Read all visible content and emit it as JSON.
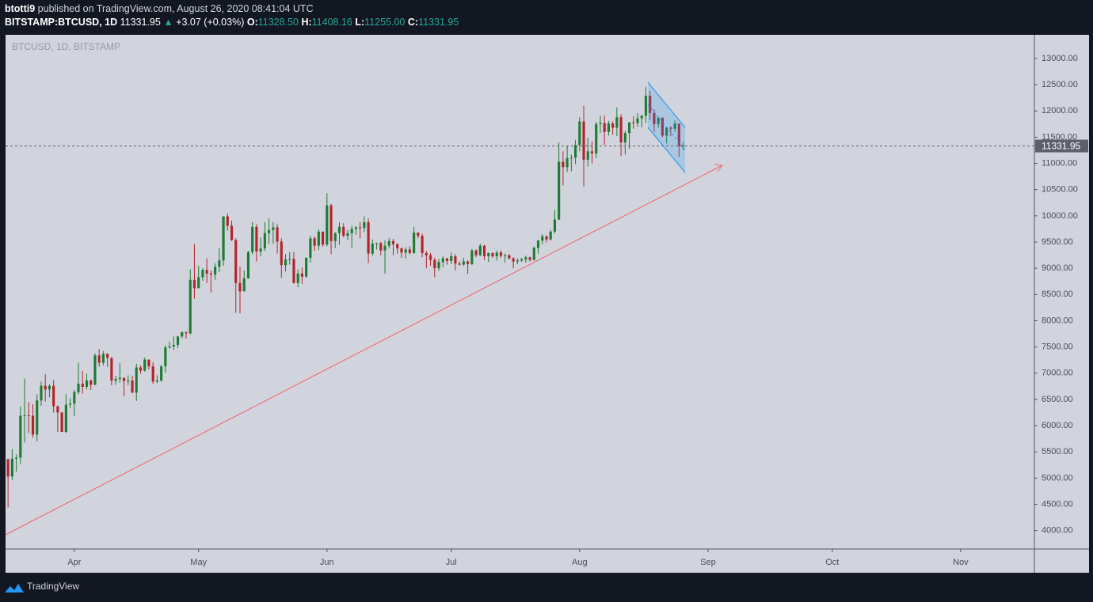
{
  "header": {
    "author": "btotti9",
    "published": "published on TradingView.com, August 26, 2020 08:41:04 UTC",
    "symbol": "BITSTAMP:BTCUSD, 1D",
    "last": "11331.95",
    "arrow": "▲",
    "change": "+3.07 (+0.03%)",
    "ohlc": [
      {
        "label": "O:",
        "value": "11328.50"
      },
      {
        "label": "H:",
        "value": "11408.16"
      },
      {
        "label": "L:",
        "value": "11255.00"
      },
      {
        "label": "C:",
        "value": "11331.95"
      }
    ]
  },
  "footer": {
    "brand": "TradingView"
  },
  "chart_data": {
    "type": "candlestick",
    "watermark": "BTCUSD, 1D, BITSTAMP",
    "up_color": "#1e7b34",
    "down_color": "#b2242b",
    "last_price": 11331.95,
    "xlim": [
      -0.6,
      247.8
    ],
    "xticks": [
      {
        "value": 16,
        "label": "Apr"
      },
      {
        "value": 46,
        "label": "May"
      },
      {
        "value": 77,
        "label": "Jun"
      },
      {
        "value": 107,
        "label": "Jul"
      },
      {
        "value": 138,
        "label": "Aug"
      },
      {
        "value": 169,
        "label": "Sep"
      },
      {
        "value": 199,
        "label": "Oct"
      },
      {
        "value": 230,
        "label": "Nov"
      }
    ],
    "ylim": [
      3648,
      13452
    ],
    "yticks": [
      {
        "value": 4000,
        "label": "4000.00"
      },
      {
        "value": 4500,
        "label": "4500.00"
      },
      {
        "value": 5000,
        "label": "5000.00"
      },
      {
        "value": 5500,
        "label": "5500.00"
      },
      {
        "value": 6000,
        "label": "6000.00"
      },
      {
        "value": 6500,
        "label": "6500.00"
      },
      {
        "value": 7000,
        "label": "7000.00"
      },
      {
        "value": 7500,
        "label": "7500.00"
      },
      {
        "value": 8000,
        "label": "8000.00"
      },
      {
        "value": 8500,
        "label": "8500.00"
      },
      {
        "value": 9000,
        "label": "9000.00"
      },
      {
        "value": 9500,
        "label": "9500.00"
      },
      {
        "value": 10000,
        "label": "10000.00"
      },
      {
        "value": 10500,
        "label": "10500.00"
      },
      {
        "value": 11000,
        "label": "11000.00"
      },
      {
        "value": 11500,
        "label": "11500.00"
      },
      {
        "value": 12000,
        "label": "12000.00"
      },
      {
        "value": 12500,
        "label": "12500.00"
      },
      {
        "value": 13000,
        "label": "13000.00"
      }
    ],
    "open": [
      5360,
      5030,
      5370,
      5390,
      6190,
      6200,
      6190,
      5830,
      6480,
      6760,
      6690,
      6760,
      6370,
      6250,
      5880,
      6400,
      6420,
      6640,
      6800,
      6740,
      6860,
      6780,
      7340,
      7200,
      7370,
      7290,
      6860,
      6890,
      6910,
      6850,
      6860,
      6630,
      7110,
      7050,
      7260,
      7130,
      6840,
      6860,
      7130,
      7490,
      7510,
      7540,
      7700,
      7780,
      7760,
      8780,
      8620,
      8830,
      8970,
      8900,
      8880,
      9030,
      9150,
      9990,
      9810,
      9540,
      8720,
      8560,
      8810,
      9310,
      9790,
      9320,
      9380,
      9670,
      9730,
      9780,
      9510,
      9060,
      9170,
      9180,
      8720,
      8900,
      8840,
      9200,
      9570,
      9430,
      9700,
      9450,
      10200,
      9520,
      9670,
      9790,
      9620,
      9670,
      9750,
      9780,
      9770,
      9880,
      9280,
      9470,
      9480,
      9340,
      9430,
      9520,
      9460,
      9380,
      9300,
      9360,
      9290,
      9680,
      9620,
      9290,
      9250,
      9160,
      9000,
      9120,
      9190,
      9140,
      9230,
      9090,
      9070,
      9130,
      9080,
      9340,
      9250,
      9430,
      9230,
      9290,
      9230,
      9300,
      9240,
      9250,
      9190,
      9130,
      9150,
      9170,
      9210,
      9160,
      9390,
      9530,
      9610,
      9550,
      9700,
      9930,
      11030,
      10930,
      11100,
      11110,
      11350,
      11800,
      11070,
      11230,
      11190,
      11750,
      11770,
      11600,
      11760,
      11680,
      11880,
      11400,
      11580,
      11780,
      11770,
      11860,
      11910,
      12290,
      11960,
      11750,
      11870,
      11530,
      11680,
      11660,
      11760,
      11328.5
    ],
    "high": [
      5370,
      5550,
      5450,
      6370,
      6900,
      6450,
      6410,
      6600,
      6840,
      6980,
      6790,
      6870,
      6380,
      6260,
      6600,
      6520,
      6680,
      7200,
      7040,
      6990,
      6880,
      7380,
      7460,
      7420,
      7380,
      7310,
      6950,
      7190,
      6920,
      6960,
      6950,
      7180,
      7150,
      7300,
      7260,
      7210,
      6960,
      7150,
      7530,
      7600,
      7700,
      7710,
      7800,
      7800,
      8980,
      9460,
      9050,
      9000,
      9190,
      8960,
      9100,
      9380,
      9990,
      10050,
      9910,
      9570,
      9030,
      8960,
      9330,
      9880,
      9840,
      9590,
      9880,
      9950,
      9880,
      9840,
      9570,
      9270,
      9310,
      9310,
      8980,
      9010,
      9210,
      9620,
      9610,
      9740,
      9700,
      10430,
      10230,
      9690,
      9880,
      9860,
      9730,
      9810,
      9800,
      9880,
      9990,
      9950,
      9550,
      9490,
      9500,
      9530,
      9580,
      9560,
      9480,
      9400,
      9400,
      9420,
      9790,
      9690,
      9660,
      9330,
      9290,
      9200,
      9180,
      9230,
      9200,
      9300,
      9270,
      9130,
      9200,
      9150,
      9370,
      9360,
      9470,
      9450,
      9300,
      9300,
      9340,
      9340,
      9280,
      9270,
      9210,
      9190,
      9200,
      9240,
      9220,
      9420,
      9540,
      9650,
      9630,
      9730,
      10110,
      11400,
      11230,
      11340,
      11170,
      11450,
      11880,
      12100,
      11490,
      11420,
      11790,
      11910,
      11910,
      11810,
      11800,
      12070,
      11940,
      11620,
      11790,
      11900,
      11960,
      11920,
      12460,
      12380,
      12030,
      11880,
      11880,
      11690,
      11710,
      11820,
      11760,
      11408.16
    ],
    "low": [
      4440,
      4960,
      5120,
      5270,
      5680,
      5860,
      5770,
      5700,
      6380,
      6460,
      6540,
      6250,
      5880,
      5880,
      5860,
      6330,
      6180,
      6600,
      6610,
      6690,
      6680,
      6770,
      7120,
      7150,
      7120,
      6770,
      6780,
      6820,
      6560,
      6770,
      6620,
      6470,
      6990,
      7030,
      7070,
      6800,
      6810,
      6840,
      7010,
      7470,
      7440,
      7480,
      7660,
      7660,
      7740,
      8420,
      8620,
      8760,
      8720,
      8540,
      8780,
      8930,
      9050,
      9720,
      9520,
      8150,
      8140,
      8560,
      8800,
      9270,
      9130,
      9230,
      9330,
      9460,
      9470,
      9280,
      8820,
      8940,
      9070,
      8710,
      8640,
      8700,
      8820,
      9110,
      9330,
      9350,
      9410,
      9420,
      9270,
      9390,
      9450,
      9590,
      9540,
      9390,
      9640,
      9570,
      9690,
      9100,
      9240,
      9360,
      9250,
      8900,
      9380,
      9250,
      9280,
      9200,
      9190,
      9270,
      9280,
      9570,
      9210,
      9000,
      9050,
      8830,
      8950,
      9020,
      9070,
      9080,
      8960,
      9050,
      9050,
      8890,
      9060,
      9210,
      9230,
      9160,
      9120,
      9200,
      9150,
      9200,
      9110,
      9170,
      9000,
      9080,
      9120,
      9110,
      9130,
      9150,
      9280,
      9460,
      9490,
      9530,
      9660,
      9920,
      10580,
      10840,
      10850,
      10990,
      11230,
      10560,
      10940,
      11000,
      11100,
      11580,
      11350,
      11530,
      11550,
      11520,
      11140,
      11170,
      11280,
      11660,
      11700,
      11690,
      11770,
      11830,
      11600,
      11680,
      11500,
      11380,
      11520,
      11600,
      11120,
      11255
    ],
    "close": [
      5030,
      5370,
      5390,
      6190,
      6200,
      6190,
      5830,
      6480,
      6760,
      6690,
      6760,
      6370,
      6250,
      5880,
      6400,
      6420,
      6640,
      6800,
      6740,
      6860,
      6780,
      7340,
      7200,
      7370,
      7290,
      6860,
      6890,
      6910,
      6850,
      6860,
      6630,
      7110,
      7050,
      7260,
      7130,
      6840,
      6860,
      7130,
      7490,
      7510,
      7540,
      7700,
      7780,
      7760,
      8780,
      8620,
      8830,
      8970,
      8900,
      8880,
      9030,
      9150,
      9990,
      9810,
      9540,
      8720,
      8560,
      8810,
      9310,
      9790,
      9320,
      9380,
      9670,
      9730,
      9780,
      9510,
      9060,
      9170,
      9180,
      8720,
      8900,
      8840,
      9200,
      9570,
      9430,
      9700,
      9450,
      10200,
      9520,
      9670,
      9790,
      9620,
      9670,
      9750,
      9780,
      9770,
      9880,
      9280,
      9470,
      9480,
      9340,
      9430,
      9520,
      9460,
      9380,
      9300,
      9360,
      9290,
      9680,
      9620,
      9290,
      9250,
      9160,
      9000,
      9120,
      9190,
      9140,
      9230,
      9090,
      9070,
      9130,
      9080,
      9340,
      9250,
      9430,
      9230,
      9290,
      9230,
      9300,
      9240,
      9250,
      9190,
      9130,
      9150,
      9170,
      9210,
      9160,
      9390,
      9530,
      9610,
      9550,
      9700,
      9930,
      11030,
      10930,
      11100,
      11110,
      11350,
      11800,
      11070,
      11230,
      11190,
      11750,
      11770,
      11600,
      11760,
      11680,
      11880,
      11400,
      11580,
      11780,
      11770,
      11860,
      11910,
      12290,
      11960,
      11750,
      11870,
      11530,
      11680,
      11660,
      11760,
      11330,
      11331.95
    ]
  }
}
